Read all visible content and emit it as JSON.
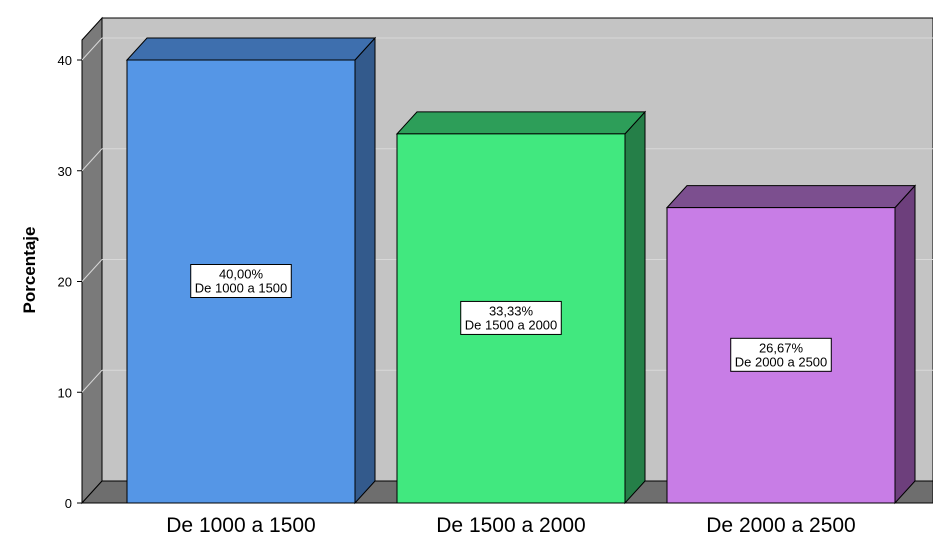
{
  "chart_data": {
    "type": "bar",
    "style": "3d",
    "categories": [
      "De 1000 a 1500",
      "De 1500 a 2000",
      "De 2000 a 2500"
    ],
    "values": [
      40.0,
      33.33,
      26.67
    ],
    "data_labels": [
      {
        "value": "40,00%",
        "category": "De 1000 a 1500"
      },
      {
        "value": "33,33%",
        "category": "De 1500 a 2000"
      },
      {
        "value": "26,67%",
        "category": "De 2000 a 2500"
      }
    ],
    "ylabel": "Porcentaje",
    "xlabel": "",
    "ylim": [
      0,
      40
    ],
    "yticks": [
      0,
      10,
      20,
      30,
      40
    ],
    "grid": true,
    "colors": {
      "bars": [
        "#5596e6",
        "#41e87f",
        "#c87de6"
      ],
      "bar_tops": [
        "#3e6fae",
        "#2d9e59",
        "#7c4f8f"
      ],
      "bar_sides": [
        "#335a8c",
        "#257f48",
        "#6d3f7c"
      ],
      "wall": "#c4c4c4",
      "side_wall": "#7a7a7a",
      "floor": "#6e6e6e",
      "gridline": "#d8d8d8"
    }
  }
}
